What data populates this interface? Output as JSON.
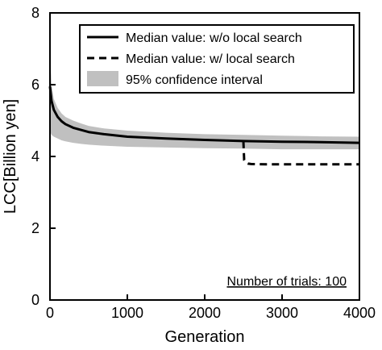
{
  "chart_data": {
    "type": "line",
    "xlabel": "Generation",
    "ylabel": "LCC[Billion yen]",
    "xlim": [
      0,
      4000
    ],
    "ylim": [
      0,
      8
    ],
    "xticks": [
      "0",
      "1000",
      "2000",
      "3000",
      "4000"
    ],
    "yticks": [
      "0",
      "2",
      "4",
      "6",
      "8"
    ],
    "grid": false,
    "legend_position": "top-right",
    "annotation": "Number of trials: 100",
    "series": [
      {
        "name": "Median value: w/o local search",
        "style": "solid",
        "color": "#000000",
        "x": [
          0,
          20,
          50,
          100,
          150,
          200,
          300,
          400,
          500,
          700,
          1000,
          1500,
          2000,
          2500,
          3000,
          3500,
          4000
        ],
        "y": [
          5.95,
          5.55,
          5.3,
          5.1,
          4.98,
          4.9,
          4.8,
          4.74,
          4.68,
          4.62,
          4.55,
          4.5,
          4.46,
          4.43,
          4.41,
          4.4,
          4.38
        ]
      },
      {
        "name": "Median value: w/ local search",
        "style": "dashed",
        "color": "#000000",
        "x": [
          2500,
          2510,
          2530,
          2560,
          2600,
          2800,
          3000,
          3500,
          4000
        ],
        "y": [
          4.43,
          3.9,
          3.83,
          3.8,
          3.79,
          3.78,
          3.78,
          3.78,
          3.78
        ]
      },
      {
        "name": "95% confidence interval",
        "style": "band",
        "color": "#c0c0c0",
        "x": [
          0,
          20,
          50,
          100,
          150,
          200,
          300,
          400,
          500,
          700,
          1000,
          1500,
          2000,
          2500,
          3000,
          3500,
          4000
        ],
        "upper": [
          7.0,
          6.0,
          5.6,
          5.35,
          5.2,
          5.1,
          5.0,
          4.92,
          4.85,
          4.78,
          4.72,
          4.66,
          4.62,
          4.6,
          4.58,
          4.56,
          4.55
        ],
        "lower": [
          4.7,
          4.6,
          4.55,
          4.5,
          4.45,
          4.42,
          4.38,
          4.35,
          4.33,
          4.3,
          4.27,
          4.25,
          4.23,
          4.22,
          4.2,
          4.2,
          4.2
        ]
      }
    ]
  }
}
